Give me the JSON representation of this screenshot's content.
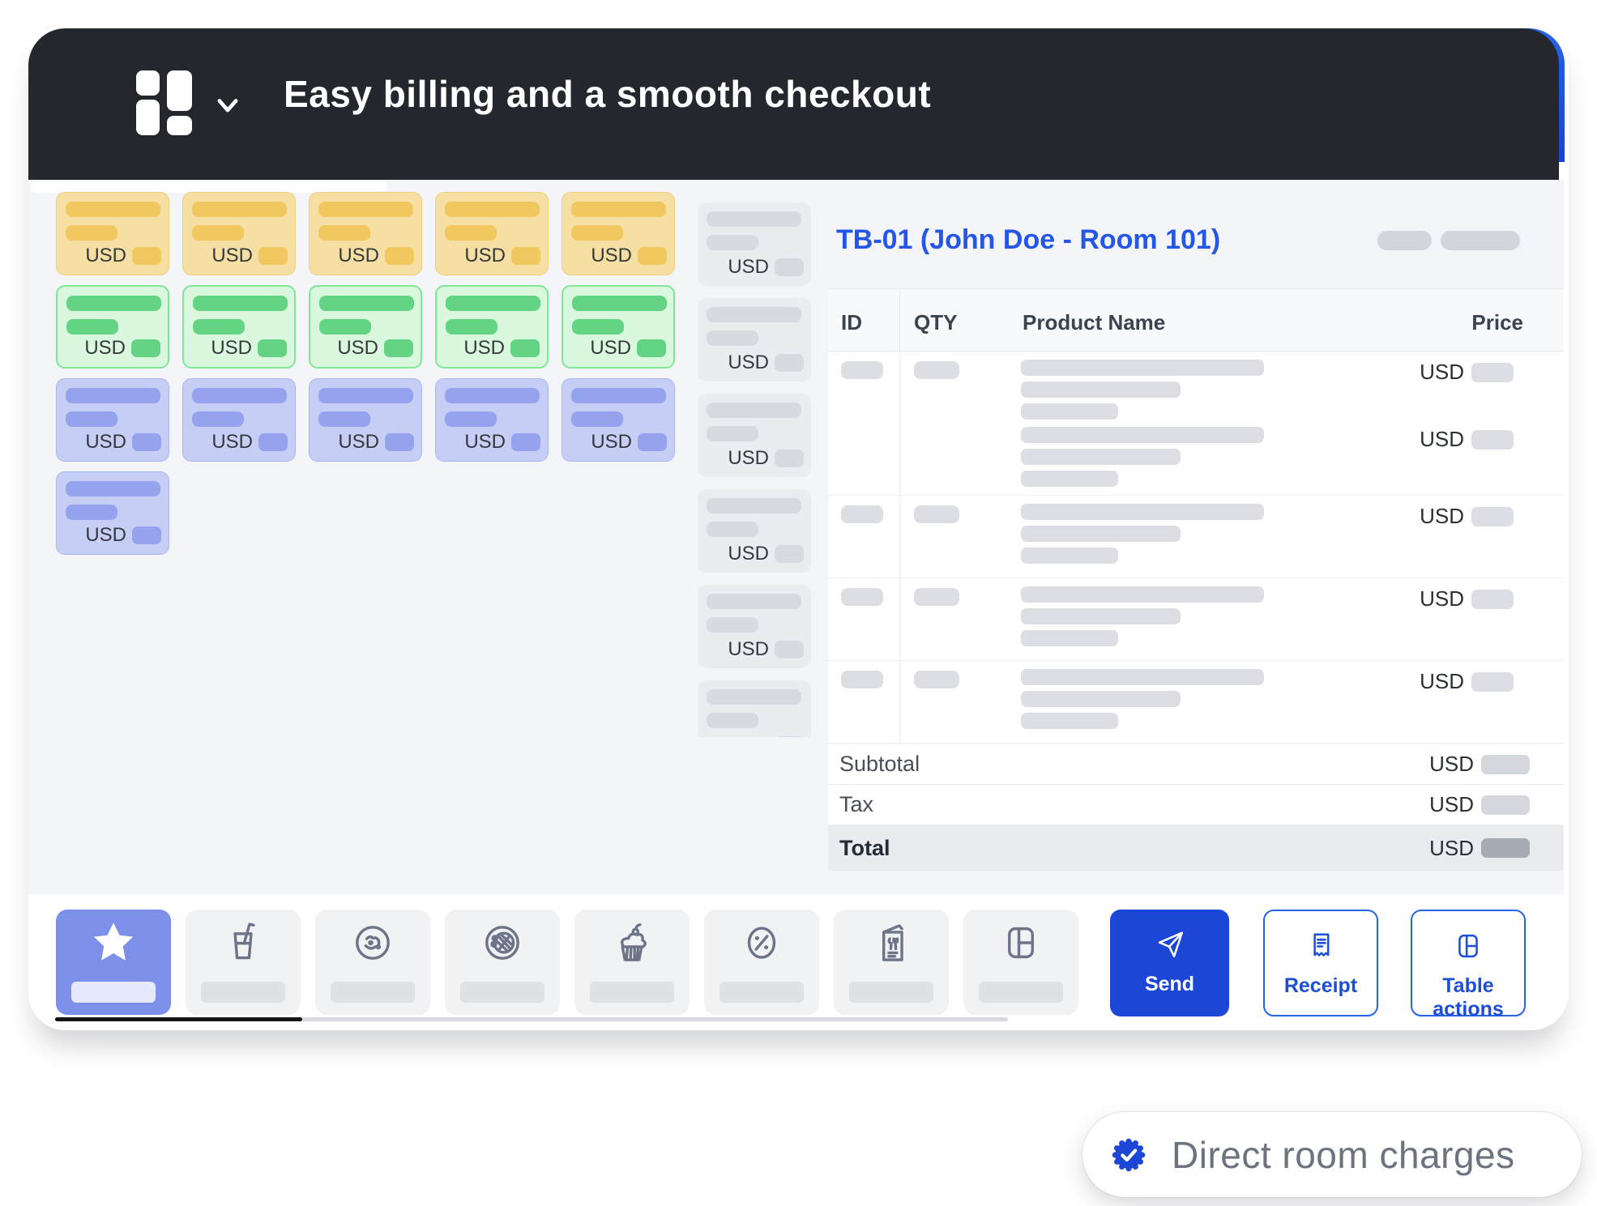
{
  "window_header": {
    "title": "Easy billing and a smooth checkout",
    "logo_icon": "app-grid-logo",
    "chevron_icon": "chevron-down"
  },
  "currency": {
    "code": "USD"
  },
  "product_grid": {
    "rows": [
      {
        "color": "yellow",
        "count": 5
      },
      {
        "color": "green",
        "count": 5
      },
      {
        "color": "blue",
        "count": 5
      },
      {
        "color": "blue",
        "count": 1
      }
    ],
    "side_list": {
      "color": "gray",
      "count": 6
    }
  },
  "bill": {
    "title": "TB-01 (John Doe - Room 101)",
    "columns": [
      "ID",
      "QTY",
      "Product Name",
      "Price"
    ],
    "items": [
      {
        "price_lines": 2
      },
      {
        "price_lines": 1
      },
      {
        "price_lines": 1
      },
      {
        "price_lines": 1
      }
    ],
    "totals": [
      {
        "label": "Subtotal",
        "emphasis": false
      },
      {
        "label": "Tax",
        "emphasis": false
      },
      {
        "label": "Total",
        "emphasis": true
      }
    ]
  },
  "footer": {
    "tabs": [
      {
        "icon": "star",
        "active": true
      },
      {
        "icon": "drink",
        "active": false
      },
      {
        "icon": "food-plate",
        "active": false
      },
      {
        "icon": "waffle-plate",
        "active": false
      },
      {
        "icon": "cupcake",
        "active": false
      },
      {
        "icon": "discount-percent",
        "active": false
      },
      {
        "icon": "menu-card",
        "active": false
      },
      {
        "icon": "table-layout",
        "active": false
      }
    ],
    "buttons": [
      {
        "label": "Send",
        "icon": "send-plane",
        "variant": "primary"
      },
      {
        "label": "Receipt",
        "icon": "receipt",
        "variant": "outline"
      },
      {
        "label": "Table actions",
        "icon": "table-layout",
        "variant": "outline"
      }
    ]
  },
  "badge_pill": {
    "label": "Direct room charges",
    "icon": "verified-check"
  },
  "colors": {
    "header_bg": "#24272e",
    "accent_blue": "#1c46d6",
    "title_blue": "#2456e8",
    "active_tab": "#7c8fe9",
    "content_bg": "#f4f5f8",
    "yellow_card": "#f6dfa2",
    "green_card": "#d9f8de",
    "blue_card": "#c6cef5",
    "gray_card": "#ebecef",
    "total_row_bg": "#e9ebef"
  }
}
